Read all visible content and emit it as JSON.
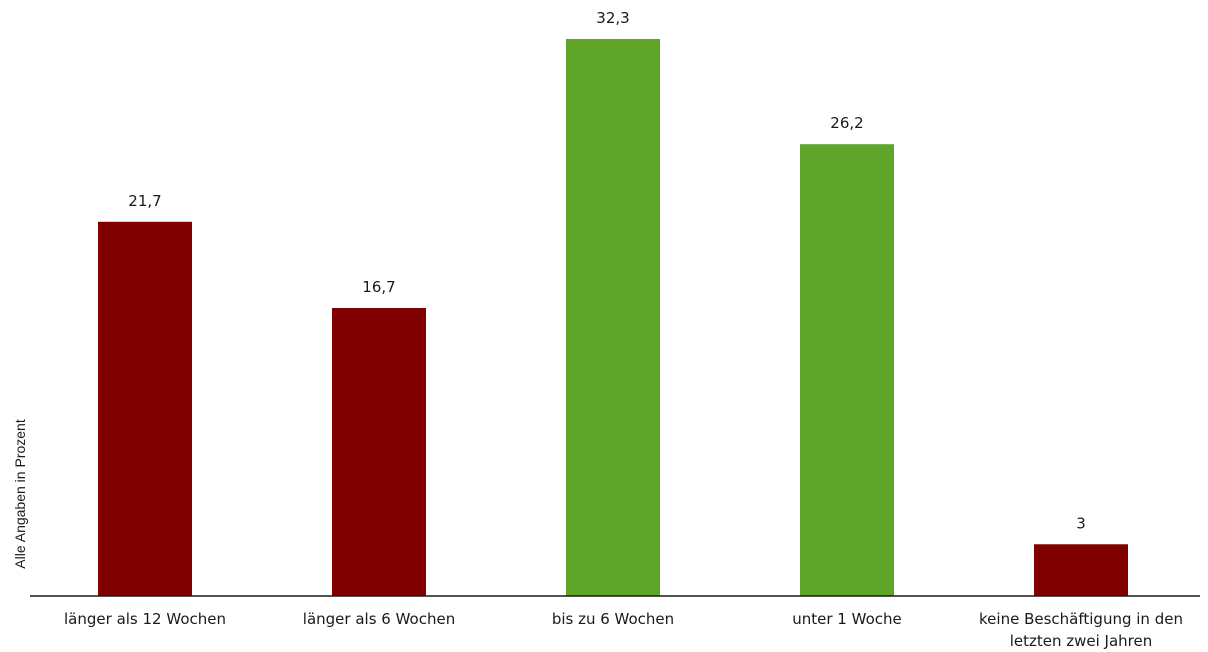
{
  "chart_data": {
    "type": "bar",
    "ylabel": "Alle Angaben in Prozent",
    "xlabel": "",
    "categories": [
      [
        "länger als 12 Wochen"
      ],
      [
        "länger als 6 Wochen"
      ],
      [
        "bis zu 6 Wochen"
      ],
      [
        "unter 1 Woche"
      ],
      [
        "keine Beschäftigung in den",
        "letzten zwei Jahren"
      ]
    ],
    "values": [
      21.7,
      16.7,
      32.3,
      26.2,
      3
    ],
    "value_labels": [
      "21,7",
      "16,7",
      "32,3",
      "26,2",
      "3"
    ],
    "bar_colors": [
      "#800000",
      "#800000",
      "#5fa52a",
      "#5fa52a",
      "#800000"
    ],
    "ylim": [
      0,
      32.3
    ],
    "grid": false,
    "legend": "none"
  }
}
